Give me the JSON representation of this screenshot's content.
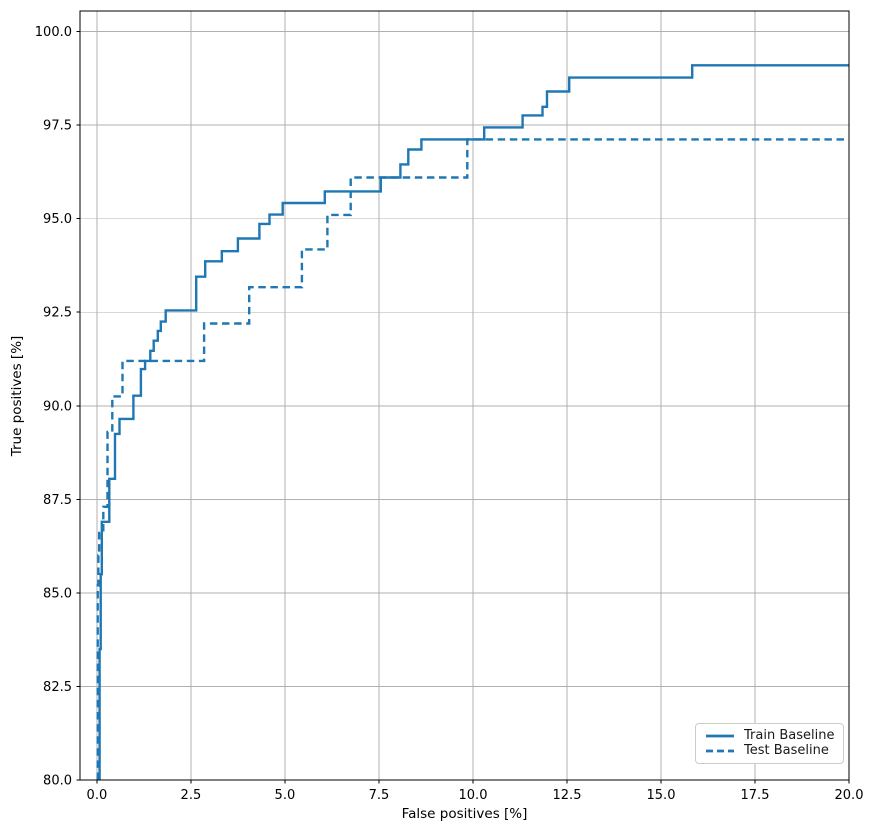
{
  "chart_data": {
    "type": "line",
    "title": "",
    "xlabel": "False positives [%]",
    "ylabel": "True positives [%]",
    "xlim": [
      -0.45,
      20.0
    ],
    "ylim": [
      80.0,
      100.55
    ],
    "x_ticks": [
      0,
      2.5,
      5,
      7.5,
      10,
      12.5,
      15,
      17.5,
      20
    ],
    "x_tick_labels": [
      "0.0",
      "2.5",
      "5.0",
      "7.5",
      "10.0",
      "12.5",
      "15.0",
      "17.5",
      "20.0"
    ],
    "y_ticks": [
      80,
      82.5,
      85,
      87.5,
      90,
      92.5,
      95,
      97.5,
      100
    ],
    "y_tick_labels": [
      "80.0",
      "82.5",
      "85.0",
      "87.5",
      "90.0",
      "92.5",
      "95.0",
      "97.5",
      "100.0"
    ],
    "grid": true,
    "grid_color": "#b0b0b0",
    "axis_color": "#000000",
    "line_color": "#1f77b4",
    "legend_position": "lower right",
    "series": [
      {
        "name": "Train Baseline",
        "style": "solid",
        "drawstyle": "steps",
        "points": [
          [
            0.07,
            80.0
          ],
          [
            0.07,
            83.5
          ],
          [
            0.1,
            85.5
          ],
          [
            0.13,
            86.9
          ],
          [
            0.33,
            88.05
          ],
          [
            0.48,
            89.25
          ],
          [
            0.6,
            89.65
          ],
          [
            0.97,
            90.27
          ],
          [
            1.17,
            90.98
          ],
          [
            1.28,
            91.2
          ],
          [
            1.42,
            91.47
          ],
          [
            1.51,
            91.74
          ],
          [
            1.62,
            92.0
          ],
          [
            1.7,
            92.25
          ],
          [
            1.83,
            92.55
          ],
          [
            2.64,
            93.45
          ],
          [
            2.88,
            93.86
          ],
          [
            3.32,
            94.13
          ],
          [
            3.75,
            94.47
          ],
          [
            4.32,
            94.86
          ],
          [
            4.59,
            95.11
          ],
          [
            4.94,
            95.42
          ],
          [
            6.06,
            95.73
          ],
          [
            7.55,
            96.1
          ],
          [
            8.07,
            96.45
          ],
          [
            8.28,
            96.85
          ],
          [
            8.63,
            97.12
          ],
          [
            10.3,
            97.44
          ],
          [
            11.32,
            97.76
          ],
          [
            11.85,
            97.99
          ],
          [
            11.97,
            98.4
          ],
          [
            12.56,
            98.77
          ],
          [
            15.83,
            99.1
          ],
          [
            20.0,
            99.1
          ]
        ]
      },
      {
        "name": "Test Baseline",
        "style": "dashed",
        "drawstyle": "steps",
        "points": [
          [
            0.02,
            80.0
          ],
          [
            0.02,
            85.2
          ],
          [
            0.04,
            86.0
          ],
          [
            0.06,
            86.6
          ],
          [
            0.17,
            87.3
          ],
          [
            0.28,
            89.3
          ],
          [
            0.41,
            90.25
          ],
          [
            0.68,
            91.2
          ],
          [
            2.85,
            92.2
          ],
          [
            4.05,
            93.17
          ],
          [
            5.45,
            94.18
          ],
          [
            6.13,
            95.1
          ],
          [
            6.75,
            96.1
          ],
          [
            9.85,
            97.12
          ],
          [
            20.0,
            97.12
          ]
        ]
      }
    ]
  }
}
